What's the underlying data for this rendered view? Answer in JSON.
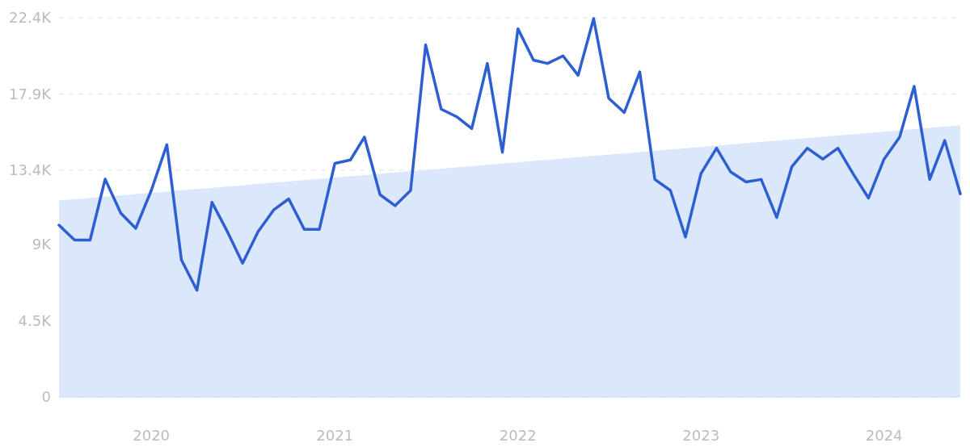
{
  "chart_data": {
    "type": "line",
    "x": [
      "2019-07",
      "2019-08",
      "2019-09",
      "2019-10",
      "2019-11",
      "2019-12",
      "2020-01",
      "2020-02",
      "2020-03",
      "2020-04",
      "2020-05",
      "2020-06",
      "2020-07",
      "2020-08",
      "2020-09",
      "2020-10",
      "2020-11",
      "2020-12",
      "2021-01",
      "2021-02",
      "2021-03",
      "2021-04",
      "2021-05",
      "2021-06",
      "2021-07",
      "2021-08",
      "2021-09",
      "2021-10",
      "2021-11",
      "2021-12",
      "2022-01",
      "2022-02",
      "2022-03",
      "2022-04",
      "2022-05",
      "2022-06",
      "2022-07",
      "2022-08",
      "2022-09",
      "2022-10",
      "2022-11",
      "2022-12",
      "2023-01",
      "2023-02",
      "2023-03",
      "2023-04",
      "2023-05",
      "2023-06",
      "2023-07",
      "2023-08",
      "2023-09",
      "2023-10",
      "2023-11",
      "2023-12",
      "2024-01",
      "2024-02",
      "2024-03",
      "2024-04",
      "2024-05",
      "2024-06"
    ],
    "series": [
      {
        "type": "area",
        "color": "#dbe8fb",
        "x": [
          "2019-07",
          "2024-06"
        ],
        "values": [
          11600,
          16050
        ]
      },
      {
        "color": "#2d5fd3",
        "values": [
          10150,
          9270,
          9270,
          12870,
          10870,
          9960,
          12200,
          14900,
          8100,
          6300,
          11500,
          9750,
          7900,
          9770,
          11050,
          11700,
          9900,
          9900,
          13800,
          14000,
          15350,
          11950,
          11300,
          12200,
          20800,
          17000,
          16550,
          15850,
          19700,
          14450,
          21750,
          19900,
          19700,
          20150,
          19000,
          22350,
          17650,
          16800,
          19200,
          12850,
          12200,
          9450,
          13200,
          14700,
          13300,
          12700,
          12850,
          10600,
          13600,
          14700,
          14050,
          14700,
          13150,
          11750,
          14050,
          15350,
          18350,
          12850,
          15150,
          12000
        ]
      }
    ],
    "xlim": [
      "2019-07",
      "2024-06"
    ],
    "xticks": [
      "2020",
      "2021",
      "2022",
      "2023",
      "2024"
    ],
    "ylim": [
      0,
      22400
    ],
    "yticks": [
      {
        "value": 0,
        "label": "0"
      },
      {
        "value": 4500,
        "label": "4.5K"
      },
      {
        "value": 9000,
        "label": "9K"
      },
      {
        "value": 13400,
        "label": "13.4K"
      },
      {
        "value": 17900,
        "label": "17.9K"
      },
      {
        "value": 22400,
        "label": "22.4K"
      }
    ],
    "grid": "y",
    "line_style": "solid"
  }
}
